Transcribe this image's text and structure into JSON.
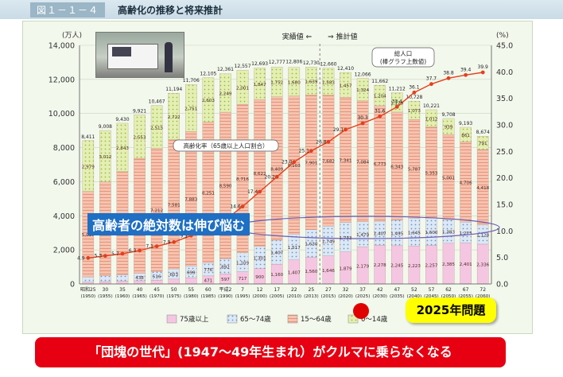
{
  "header": {
    "figure_no": "図１－１－４",
    "title": "高齢化の推移と将来推計"
  },
  "colors": {
    "age75": "#f2b6d8",
    "age65": "#c7dcf1",
    "age15": "#f4b9a4",
    "age0": "#d8e89a",
    "rate_line": "#e4401f",
    "callout": "#1f6fc4",
    "banner": "#e60012",
    "badge": "#ffff00"
  },
  "chart_data": {
    "type": "bar",
    "stacked": true,
    "units": {
      "left": "(万人)",
      "right": "(%)"
    },
    "ylim": [
      0,
      14000
    ],
    "y2lim": [
      0,
      45
    ],
    "y_ticks": [
      "0",
      "2,000",
      "4,000",
      "6,000",
      "8,000",
      "10,000",
      "12,000",
      "14,000"
    ],
    "y2_ticks": [
      "0.0",
      "5.0",
      "10.0",
      "15.0",
      "20.0",
      "25.0",
      "30.0",
      "35.0",
      "40.0",
      "45.0"
    ],
    "categories": [
      "昭和25",
      "30",
      "35",
      "40",
      "45",
      "50",
      "55",
      "60",
      "平成2",
      "7",
      "12",
      "17",
      "22",
      "25",
      "27",
      "32",
      "37",
      "42",
      "47",
      "52",
      "57",
      "62",
      "67",
      "72"
    ],
    "categories_sub": [
      "(1950)",
      "(1955)",
      "(1960)",
      "(1965)",
      "(1970)",
      "(1975)",
      "(1980)",
      "(1985)",
      "(1990)",
      "(1995)",
      "(2000)",
      "(2005)",
      "(2010)",
      "(2013)",
      "(2015)",
      "(2020)",
      "(2025)",
      "(2030)",
      "(2035)",
      "(2040)",
      "(2045)",
      "(2050)",
      "(2055)",
      "(2060)"
    ],
    "series": [
      {
        "name": "75歳以上",
        "values": [
          107,
          139,
          164,
          189,
          224,
          284,
          366,
          471,
          597,
          717,
          900,
          1160,
          1407,
          1560,
          1646,
          1879,
          2179,
          2278,
          2245,
          2223,
          2257,
          2385,
          2401,
          2336
        ]
      },
      {
        "name": "65～74歳",
        "values": [
          309,
          336,
          376,
          438,
          516,
          603,
          699,
          776,
          892,
          1109,
          1301,
          1407,
          1517,
          1630,
          1749,
          1733,
          1479,
          1407,
          1495,
          1645,
          1600,
          1383,
          1225,
          1128
        ]
      },
      {
        "name": "15～64歳",
        "values": [
          5017,
          5517,
          6047,
          6744,
          7212,
          7581,
          7883,
          8251,
          8590,
          8716,
          8622,
          8409,
          8103,
          7901,
          7682,
          7341,
          7084,
          6773,
          6343,
          5787,
          5353,
          5001,
          4706,
          4418
        ]
      },
      {
        "name": "0～14歳",
        "values": [
          2979,
          3012,
          2843,
          2553,
          2515,
          2722,
          2751,
          2603,
          2249,
          2001,
          1847,
          1752,
          1680,
          1639,
          1583,
          1457,
          1324,
          1204,
          1129,
          1073,
          1012,
          939,
          861,
          791
        ]
      }
    ],
    "totals": [
      8411,
      9008,
      9430,
      9921,
      10467,
      11194,
      11706,
      12105,
      12361,
      12557,
      12693,
      12777,
      12806,
      12730,
      12660,
      12410,
      12066,
      11662,
      11212,
      10728,
      10221,
      9708,
      9193,
      8674
    ],
    "rate": [
      4.9,
      5.3,
      5.7,
      6.3,
      7.1,
      7.9,
      9.1,
      10.3,
      12.1,
      14.6,
      17.4,
      20.2,
      23.0,
      25.1,
      26.8,
      29.1,
      30.3,
      31.6,
      33.4,
      36.1,
      37.7,
      38.8,
      39.4,
      39.9
    ],
    "legend": [
      "75歳以上",
      "65～74歳",
      "15～64歳",
      "0～14歳"
    ],
    "legend_placement": "bottom",
    "annotations": {
      "actual": "実績値",
      "estimate": "推計値",
      "total_note": "総人口\n(棒グラフ上数値)",
      "rate_label": "高齢化率（65歳以上人口割合）"
    }
  },
  "callout": "高齢者の絶対数は伸び悩む",
  "badge": "2025年問題",
  "banner": "「団塊の世代」(1947～49年生まれ）がクルマに乗らなくなる"
}
